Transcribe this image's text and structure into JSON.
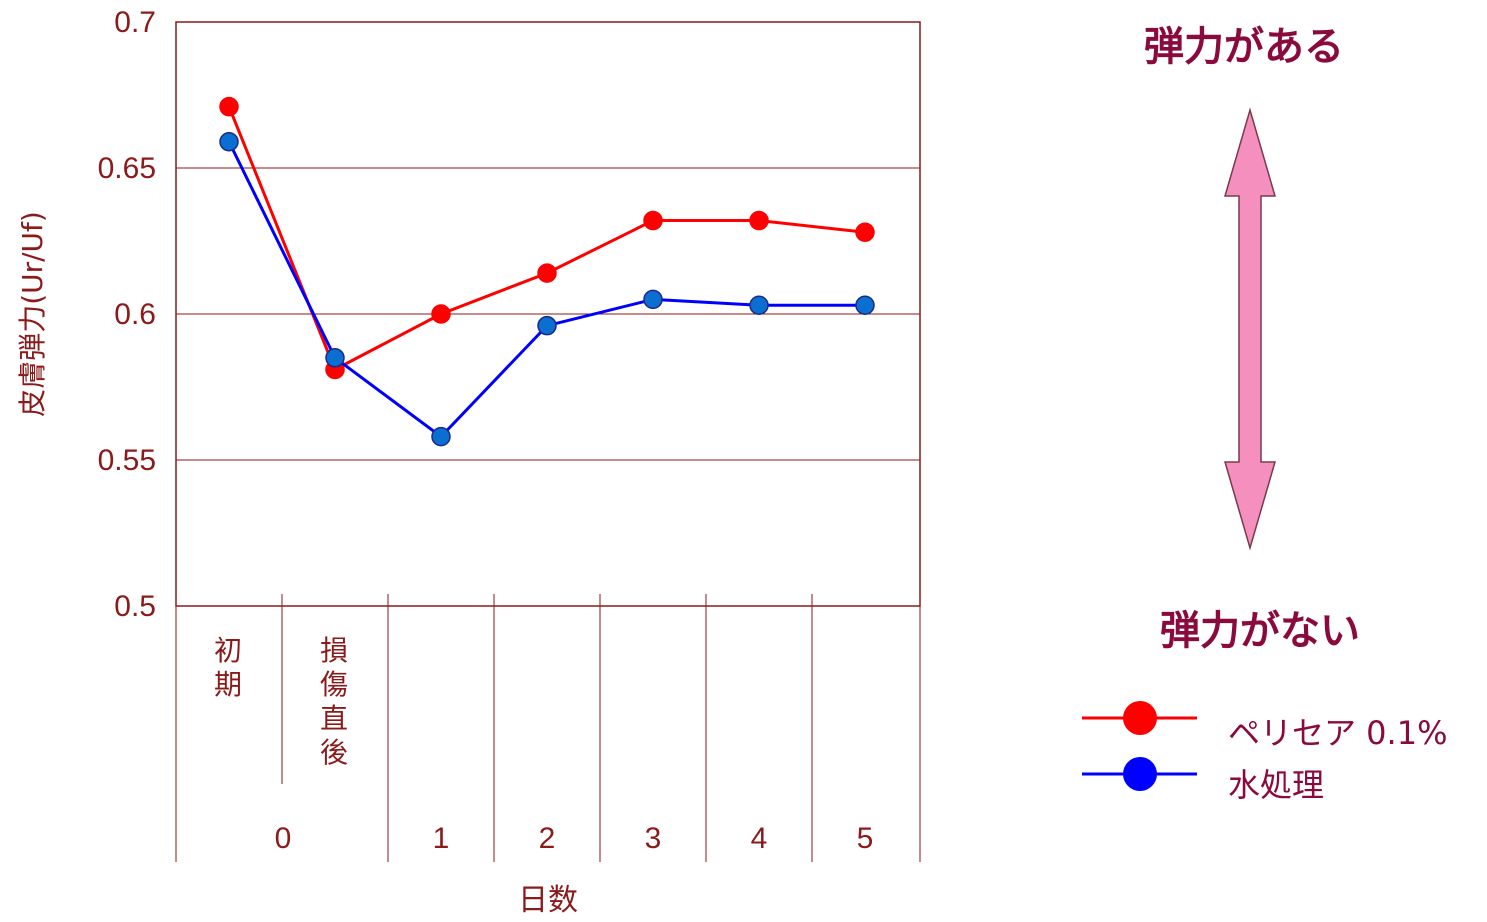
{
  "annotations": {
    "top": "弾力がある",
    "bottom": "弾力がない"
  },
  "colors": {
    "axis_text": "#8b1a1a",
    "annotation_text": "#8b0a3e",
    "gridline": "#8b1a1a",
    "arrow_fill": "#f48fbe"
  },
  "chart_data": {
    "type": "line",
    "ylabel": "皮膚弾力(Ur/Uf)",
    "xlabel": "日数",
    "ylim": [
      0.5,
      0.7
    ],
    "yticks": [
      "0.5",
      "0.55",
      "0.6",
      "0.65",
      "0.7"
    ],
    "grid": true,
    "categories": [
      "初期",
      "損傷直後",
      "1",
      "2",
      "3",
      "4",
      "5"
    ],
    "day_labels": [
      "0",
      "1",
      "2",
      "3",
      "4",
      "5"
    ],
    "legend_position": "bottom-right",
    "series": [
      {
        "name": "ペリセア 0.1%",
        "color": "#ff0000",
        "marker_color": "#ff0000",
        "values": [
          0.671,
          0.581,
          0.6,
          0.614,
          0.632,
          0.632,
          0.628
        ]
      },
      {
        "name": "水処理",
        "color": "#0000ff",
        "marker_color": "#0a6fd0",
        "values": [
          0.659,
          0.585,
          0.558,
          0.596,
          0.605,
          0.603,
          0.603
        ]
      }
    ]
  }
}
